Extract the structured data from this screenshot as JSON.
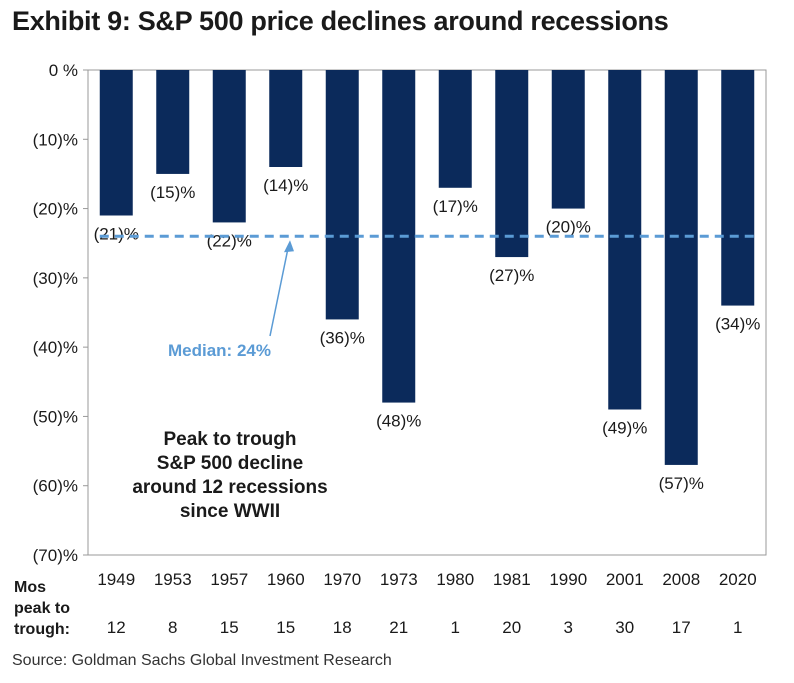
{
  "title": "Exhibit 9: S&P 500 price declines around recessions",
  "source": "Source: Goldman Sachs Global Investment Research",
  "colors": {
    "bar": "#0b2a5b",
    "median": "#5b9bd5",
    "axis": "#999999"
  },
  "chart_data": {
    "type": "bar",
    "categories": [
      "1949",
      "1953",
      "1957",
      "1960",
      "1970",
      "1973",
      "1980",
      "1981",
      "1990",
      "2001",
      "2008",
      "2020"
    ],
    "values": [
      -21,
      -15,
      -22,
      -14,
      -36,
      -48,
      -17,
      -27,
      -20,
      -49,
      -57,
      -34
    ],
    "data_labels": [
      "(21)%",
      "(15)%",
      "(22)%",
      "(14)%",
      "(36)%",
      "(48)%",
      "(17)%",
      "(27)%",
      "(20)%",
      "(49)%",
      "(57)%",
      "(34)%"
    ],
    "ylim": [
      -70,
      0
    ],
    "yticks": [
      0,
      -10,
      -20,
      -30,
      -40,
      -50,
      -60,
      -70
    ],
    "ytick_labels": [
      "0 %",
      "(10)%",
      "(20)%",
      "(30)%",
      "(40)%",
      "(50)%",
      "(60)%",
      "(70)%"
    ],
    "median": {
      "value": -24,
      "label": "Median: 24%"
    },
    "annotation": [
      "Peak to trough",
      "S&P 500 decline",
      "around 12 recessions",
      "since WWII"
    ],
    "months_caption": [
      "Mos",
      "peak to",
      "trough:"
    ],
    "months_peak_to_trough": [
      "12",
      "8",
      "15",
      "15",
      "18",
      "21",
      "1",
      "20",
      "3",
      "30",
      "17",
      "1"
    ],
    "grid": false
  }
}
